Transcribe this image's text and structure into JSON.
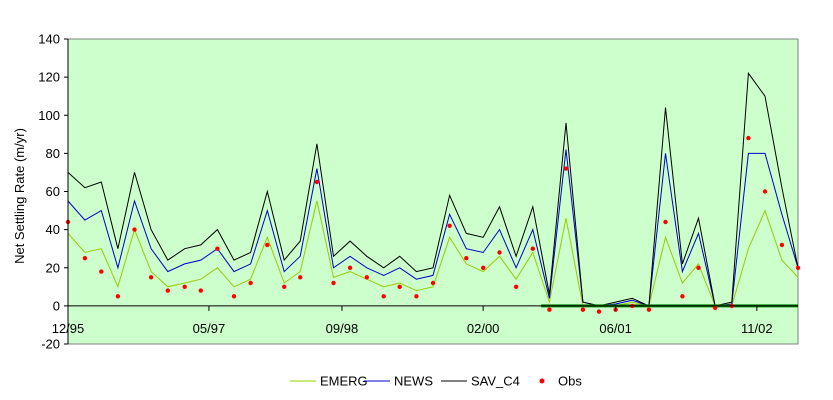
{
  "chart_data": {
    "type": "line",
    "title": "",
    "xlabel": "",
    "ylabel": "Net Settling Rate (m/yr)",
    "ylim": [
      -20,
      140
    ],
    "yticks": [
      -20,
      0,
      20,
      40,
      60,
      80,
      100,
      120,
      140
    ],
    "xlim": [
      "1995-12-01",
      "2003-04-01"
    ],
    "xticks": [
      {
        "label": "12/95",
        "date": "1995-12-01"
      },
      {
        "label": "05/97",
        "date": "1997-05-01"
      },
      {
        "label": "09/98",
        "date": "1998-09-01"
      },
      {
        "label": "02/00",
        "date": "2000-02-01"
      },
      {
        "label": "06/01",
        "date": "2001-06-01"
      },
      {
        "label": "11/02",
        "date": "2002-11-01"
      }
    ],
    "grid": false,
    "legend": "bottom",
    "plot_background": "#ccffcc",
    "colors": {
      "EMERG": "#99cc00",
      "NEWS": "#0000cc",
      "SAV_C4": "#000000",
      "Obs": "#ff0000",
      "zero_segment": "#008000"
    },
    "series": [
      {
        "name": "EMERG",
        "x": [
          "1995-12-01",
          "1996-02-01",
          "1996-04-01",
          "1996-06-01",
          "1996-08-01",
          "1996-10-01",
          "1996-12-01",
          "1997-02-01",
          "1997-04-01",
          "1997-06-01",
          "1997-08-01",
          "1997-10-01",
          "1997-12-01",
          "1998-02-01",
          "1998-04-01",
          "1998-06-01",
          "1998-08-01",
          "1998-10-01",
          "1998-12-01",
          "1999-02-01",
          "1999-04-01",
          "1999-06-01",
          "1999-08-01",
          "1999-10-01",
          "1999-12-01",
          "2000-02-01",
          "2000-04-01",
          "2000-06-01",
          "2000-08-01",
          "2000-10-01",
          "2000-12-01",
          "2001-02-01",
          "2001-04-01",
          "2001-06-01",
          "2001-08-01",
          "2001-10-01",
          "2001-12-01",
          "2002-02-01",
          "2002-04-01",
          "2002-06-01",
          "2002-08-01",
          "2002-10-01",
          "2002-12-01",
          "2003-02-01",
          "2003-04-01"
        ],
        "y": [
          38,
          28,
          30,
          10,
          40,
          18,
          10,
          12,
          14,
          20,
          10,
          14,
          36,
          12,
          18,
          55,
          15,
          18,
          14,
          10,
          12,
          8,
          10,
          36,
          22,
          18,
          26,
          14,
          28,
          2,
          46,
          0,
          0,
          0,
          2,
          0,
          36,
          12,
          22,
          0,
          0,
          30,
          50,
          24,
          15
        ]
      },
      {
        "name": "NEWS",
        "x": [
          "1995-12-01",
          "1996-02-01",
          "1996-04-01",
          "1996-06-01",
          "1996-08-01",
          "1996-10-01",
          "1996-12-01",
          "1997-02-01",
          "1997-04-01",
          "1997-06-01",
          "1997-08-01",
          "1997-10-01",
          "1997-12-01",
          "1998-02-01",
          "1998-04-01",
          "1998-06-01",
          "1998-08-01",
          "1998-10-01",
          "1998-12-01",
          "1999-02-01",
          "1999-04-01",
          "1999-06-01",
          "1999-08-01",
          "1999-10-01",
          "1999-12-01",
          "2000-02-01",
          "2000-04-01",
          "2000-06-01",
          "2000-08-01",
          "2000-10-01",
          "2000-12-01",
          "2001-02-01",
          "2001-04-01",
          "2001-06-01",
          "2001-08-01",
          "2001-10-01",
          "2001-12-01",
          "2002-02-01",
          "2002-04-01",
          "2002-06-01",
          "2002-08-01",
          "2002-10-01",
          "2002-12-01",
          "2003-02-01",
          "2003-04-01"
        ],
        "y": [
          55,
          45,
          50,
          20,
          55,
          30,
          18,
          22,
          24,
          30,
          18,
          22,
          50,
          18,
          26,
          72,
          20,
          26,
          20,
          16,
          20,
          14,
          16,
          48,
          30,
          28,
          40,
          20,
          40,
          4,
          82,
          2,
          0,
          1,
          3,
          0,
          80,
          18,
          38,
          0,
          1,
          80,
          80,
          48,
          20
        ]
      },
      {
        "name": "SAV_C4",
        "x": [
          "1995-12-01",
          "1996-02-01",
          "1996-04-01",
          "1996-06-01",
          "1996-08-01",
          "1996-10-01",
          "1996-12-01",
          "1997-02-01",
          "1997-04-01",
          "1997-06-01",
          "1997-08-01",
          "1997-10-01",
          "1997-12-01",
          "1998-02-01",
          "1998-04-01",
          "1998-06-01",
          "1998-08-01",
          "1998-10-01",
          "1998-12-01",
          "1999-02-01",
          "1999-04-01",
          "1999-06-01",
          "1999-08-01",
          "1999-10-01",
          "1999-12-01",
          "2000-02-01",
          "2000-04-01",
          "2000-06-01",
          "2000-08-01",
          "2000-10-01",
          "2000-12-01",
          "2001-02-01",
          "2001-04-01",
          "2001-06-01",
          "2001-08-01",
          "2001-10-01",
          "2001-12-01",
          "2002-02-01",
          "2002-04-01",
          "2002-06-01",
          "2002-08-01",
          "2002-10-01",
          "2002-12-01",
          "2003-02-01",
          "2003-04-01"
        ],
        "y": [
          70,
          62,
          65,
          30,
          70,
          40,
          24,
          30,
          32,
          40,
          24,
          28,
          60,
          24,
          34,
          85,
          26,
          34,
          26,
          20,
          26,
          18,
          20,
          58,
          38,
          36,
          52,
          26,
          52,
          6,
          96,
          2,
          0,
          2,
          4,
          0,
          104,
          22,
          46,
          0,
          2,
          122,
          110,
          62,
          20
        ]
      },
      {
        "name": "Obs",
        "x": [
          "1995-12-01",
          "1996-02-01",
          "1996-04-01",
          "1996-06-01",
          "1996-08-01",
          "1996-10-01",
          "1996-12-01",
          "1997-02-01",
          "1997-04-01",
          "1997-06-01",
          "1997-08-01",
          "1997-10-01",
          "1997-12-01",
          "1998-02-01",
          "1998-04-01",
          "1998-06-01",
          "1998-08-01",
          "1998-10-01",
          "1998-12-01",
          "1999-02-01",
          "1999-04-01",
          "1999-06-01",
          "1999-08-01",
          "1999-10-01",
          "1999-12-01",
          "2000-02-01",
          "2000-04-01",
          "2000-06-01",
          "2000-08-01",
          "2000-10-01",
          "2000-12-01",
          "2001-02-01",
          "2001-04-01",
          "2001-06-01",
          "2001-08-01",
          "2001-10-01",
          "2001-12-01",
          "2002-02-01",
          "2002-04-01",
          "2002-06-01",
          "2002-08-01",
          "2002-10-01",
          "2002-12-01",
          "2003-02-01",
          "2003-04-01"
        ],
        "y": [
          44,
          25,
          18,
          5,
          40,
          15,
          8,
          10,
          8,
          30,
          5,
          12,
          32,
          10,
          15,
          65,
          12,
          20,
          15,
          5,
          10,
          5,
          12,
          42,
          25,
          20,
          28,
          10,
          30,
          -2,
          72,
          -2,
          -3,
          -2,
          0,
          -2,
          44,
          5,
          20,
          -1,
          0,
          88,
          60,
          32,
          20
        ]
      }
    ],
    "zero_segment": {
      "from": "2000-09-01",
      "to": "2003-04-01",
      "y": 0
    }
  }
}
